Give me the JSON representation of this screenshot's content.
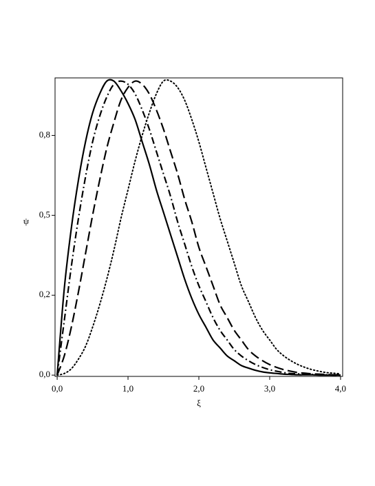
{
  "chart_data": {
    "type": "line",
    "x_label": "ξ",
    "y_label": "ψ",
    "xlim": [
      -0.03,
      4.03
    ],
    "xticks": [
      {
        "value": 0,
        "label": "0,0"
      },
      {
        "value": 1,
        "label": "1,0"
      },
      {
        "value": 2,
        "label": "2,0"
      },
      {
        "value": 3,
        "label": "3,0"
      },
      {
        "value": 4,
        "label": "4,0"
      }
    ],
    "ylim": [
      -0.004,
      0.93
    ],
    "yticks": [
      {
        "value": 0,
        "label": "0,0"
      },
      {
        "value": 0.25,
        "label": "0,2"
      },
      {
        "value": 0.5,
        "label": "0,5"
      },
      {
        "value": 0.75,
        "label": "0,8"
      }
    ],
    "x": [
      0,
      0.1,
      0.2,
      0.3,
      0.4,
      0.5,
      0.6,
      0.7,
      0.8,
      0.9,
      1.0,
      1.1,
      1.2,
      1.3,
      1.4,
      1.5,
      1.6,
      1.7,
      1.8,
      1.9,
      2.0,
      2.1,
      2.2,
      2.3,
      2.4,
      2.5,
      2.6,
      2.7,
      2.8,
      2.9,
      3.0,
      3.1,
      3.2,
      3.3,
      3.4,
      3.5,
      3.6,
      3.7,
      3.8,
      3.9,
      4.0
    ],
    "series": [
      {
        "color": "#000000",
        "dash": "solid",
        "values": [
          0,
          0.27,
          0.46,
          0.61,
          0.73,
          0.82,
          0.88,
          0.92,
          0.92,
          0.89,
          0.85,
          0.8,
          0.73,
          0.66,
          0.58,
          0.51,
          0.44,
          0.37,
          0.3,
          0.24,
          0.19,
          0.15,
          0.11,
          0.085,
          0.06,
          0.045,
          0.03,
          0.022,
          0.015,
          0.01,
          0.007,
          0.005,
          0.003,
          0.002,
          0.001,
          0.001,
          0.001,
          0,
          0,
          0,
          0
        ]
      },
      {
        "color": "#000000",
        "dash": "dashdot",
        "values": [
          0,
          0.17,
          0.34,
          0.49,
          0.62,
          0.73,
          0.81,
          0.87,
          0.91,
          0.92,
          0.91,
          0.88,
          0.83,
          0.77,
          0.7,
          0.63,
          0.56,
          0.48,
          0.41,
          0.34,
          0.28,
          0.23,
          0.18,
          0.14,
          0.11,
          0.08,
          0.06,
          0.045,
          0.033,
          0.024,
          0.017,
          0.012,
          0.008,
          0.005,
          0.004,
          0.003,
          0.002,
          0.001,
          0.001,
          0,
          0
        ]
      },
      {
        "color": "#000000",
        "dash": "dashed",
        "values": [
          0,
          0.06,
          0.15,
          0.26,
          0.38,
          0.5,
          0.61,
          0.71,
          0.79,
          0.86,
          0.9,
          0.92,
          0.91,
          0.88,
          0.83,
          0.77,
          0.7,
          0.63,
          0.55,
          0.48,
          0.4,
          0.34,
          0.28,
          0.22,
          0.18,
          0.14,
          0.11,
          0.08,
          0.06,
          0.045,
          0.033,
          0.024,
          0.017,
          0.012,
          0.008,
          0.006,
          0.004,
          0.003,
          0.002,
          0.001,
          0.001
        ]
      },
      {
        "color": "#000000",
        "dash": "dotted",
        "values": [
          0,
          0.005,
          0.02,
          0.05,
          0.09,
          0.15,
          0.22,
          0.3,
          0.39,
          0.49,
          0.58,
          0.67,
          0.75,
          0.82,
          0.88,
          0.92,
          0.92,
          0.9,
          0.86,
          0.8,
          0.73,
          0.65,
          0.57,
          0.49,
          0.42,
          0.35,
          0.28,
          0.23,
          0.18,
          0.14,
          0.11,
          0.08,
          0.06,
          0.045,
          0.033,
          0.024,
          0.017,
          0.012,
          0.008,
          0.006,
          0.004
        ]
      }
    ]
  }
}
